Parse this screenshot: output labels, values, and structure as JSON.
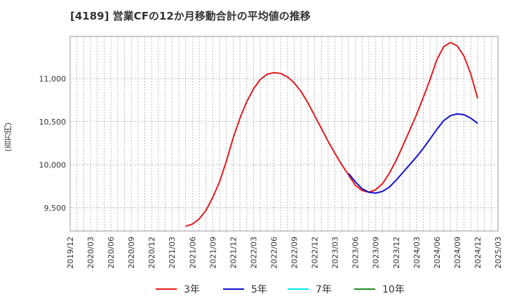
{
  "chart_data": {
    "type": "line",
    "title": "[4189]  営業CFの12か月移動合計の平均値の推移",
    "ylabel": "(百万円)",
    "xlabel": "",
    "x_ticks": [
      "2019/12",
      "2020/03",
      "2020/06",
      "2020/09",
      "2020/12",
      "2021/03",
      "2021/06",
      "2021/09",
      "2021/12",
      "2022/03",
      "2022/06",
      "2022/09",
      "2022/12",
      "2023/03",
      "2023/06",
      "2023/09",
      "2023/12",
      "2024/03",
      "2024/06",
      "2024/09",
      "2024/12",
      "2025/03"
    ],
    "y_ticks": [
      9500,
      10000,
      10500,
      11000
    ],
    "y_tick_labels": [
      "9,500",
      "10,000",
      "10,500",
      "11,000"
    ],
    "ylim": [
      9230,
      11490
    ],
    "grid": true,
    "legend_position": "bottom",
    "series": [
      {
        "name": "3年",
        "color": "#e31a1c",
        "points": [
          [
            "2021/05",
            9285
          ],
          [
            "2021/06",
            9310
          ],
          [
            "2021/07",
            9370
          ],
          [
            "2021/08",
            9470
          ],
          [
            "2021/09",
            9620
          ],
          [
            "2021/10",
            9800
          ],
          [
            "2021/11",
            10040
          ],
          [
            "2021/12",
            10310
          ],
          [
            "2022/01",
            10540
          ],
          [
            "2022/02",
            10730
          ],
          [
            "2022/03",
            10880
          ],
          [
            "2022/04",
            10990
          ],
          [
            "2022/05",
            11050
          ],
          [
            "2022/06",
            11070
          ],
          [
            "2022/07",
            11060
          ],
          [
            "2022/08",
            11020
          ],
          [
            "2022/09",
            10950
          ],
          [
            "2022/10",
            10850
          ],
          [
            "2022/11",
            10720
          ],
          [
            "2022/12",
            10570
          ],
          [
            "2023/01",
            10420
          ],
          [
            "2023/02",
            10270
          ],
          [
            "2023/03",
            10130
          ],
          [
            "2023/04",
            10000
          ],
          [
            "2023/05",
            9880
          ],
          [
            "2023/06",
            9760
          ],
          [
            "2023/07",
            9700
          ],
          [
            "2023/08",
            9680
          ],
          [
            "2023/09",
            9710
          ],
          [
            "2023/10",
            9780
          ],
          [
            "2023/11",
            9900
          ],
          [
            "2023/12",
            10050
          ],
          [
            "2024/01",
            10220
          ],
          [
            "2024/02",
            10400
          ],
          [
            "2024/03",
            10580
          ],
          [
            "2024/04",
            10780
          ],
          [
            "2024/05",
            10990
          ],
          [
            "2024/06",
            11220
          ],
          [
            "2024/07",
            11370
          ],
          [
            "2024/08",
            11420
          ],
          [
            "2024/09",
            11380
          ],
          [
            "2024/10",
            11260
          ],
          [
            "2024/11",
            11050
          ],
          [
            "2024/12",
            10770
          ]
        ]
      },
      {
        "name": "5年",
        "color": "#1010cc",
        "points": [
          [
            "2023/05",
            9900
          ],
          [
            "2023/06",
            9800
          ],
          [
            "2023/07",
            9720
          ],
          [
            "2023/08",
            9680
          ],
          [
            "2023/09",
            9670
          ],
          [
            "2023/10",
            9690
          ],
          [
            "2023/11",
            9740
          ],
          [
            "2023/12",
            9820
          ],
          [
            "2024/01",
            9910
          ],
          [
            "2024/02",
            10000
          ],
          [
            "2024/03",
            10090
          ],
          [
            "2024/04",
            10190
          ],
          [
            "2024/05",
            10300
          ],
          [
            "2024/06",
            10410
          ],
          [
            "2024/07",
            10510
          ],
          [
            "2024/08",
            10570
          ],
          [
            "2024/09",
            10590
          ],
          [
            "2024/10",
            10580
          ],
          [
            "2024/11",
            10540
          ],
          [
            "2024/12",
            10480
          ]
        ]
      },
      {
        "name": "7年",
        "color": "#00e5ee",
        "points": []
      },
      {
        "name": "10年",
        "color": "#228b22",
        "points": []
      }
    ]
  }
}
